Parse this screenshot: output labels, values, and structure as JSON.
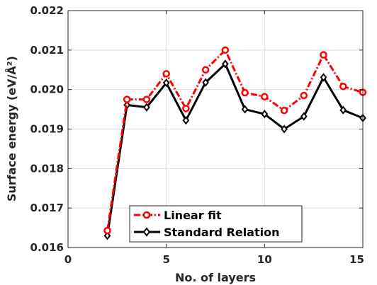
{
  "chart_data": {
    "type": "line",
    "xlabel": "No. of layers",
    "ylabel": "Surface energy (eV/Å²)",
    "xlim": [
      0,
      15
    ],
    "ylim": [
      0.016,
      0.022
    ],
    "xticks": [
      0,
      5,
      10,
      15
    ],
    "yticks": [
      0.016,
      0.017,
      0.018,
      0.019,
      0.02,
      0.021,
      0.022
    ],
    "xtick_labels": [
      "0",
      "5",
      "10",
      "15"
    ],
    "ytick_labels": [
      "0.016",
      "0.017",
      "0.018",
      "0.019",
      "0.020",
      "0.021",
      "0.022"
    ],
    "grid": true,
    "legend_position": "bottom-center",
    "series": [
      {
        "name": "Linear fit",
        "color": "#ff0000",
        "line_style": "dash-dot",
        "marker": "circle",
        "x": [
          2,
          3,
          4,
          5,
          6,
          7,
          8,
          9,
          10,
          11,
          12,
          13,
          14,
          15
        ],
        "y": [
          0.01643,
          0.01975,
          0.01975,
          0.0204,
          0.01952,
          0.0205,
          0.021,
          0.01992,
          0.01982,
          0.01947,
          0.01985,
          0.02088,
          0.02008,
          0.01993
        ]
      },
      {
        "name": "Standard Relation",
        "color": "#000000",
        "line_style": "solid",
        "marker": "diamond",
        "x": [
          2,
          3,
          4,
          5,
          6,
          7,
          8,
          9,
          10,
          11,
          12,
          13,
          14,
          15
        ],
        "y": [
          0.0163,
          0.01961,
          0.01955,
          0.02017,
          0.01922,
          0.02018,
          0.02065,
          0.0195,
          0.01938,
          0.019,
          0.01932,
          0.02031,
          0.01948,
          0.01928
        ]
      }
    ]
  }
}
